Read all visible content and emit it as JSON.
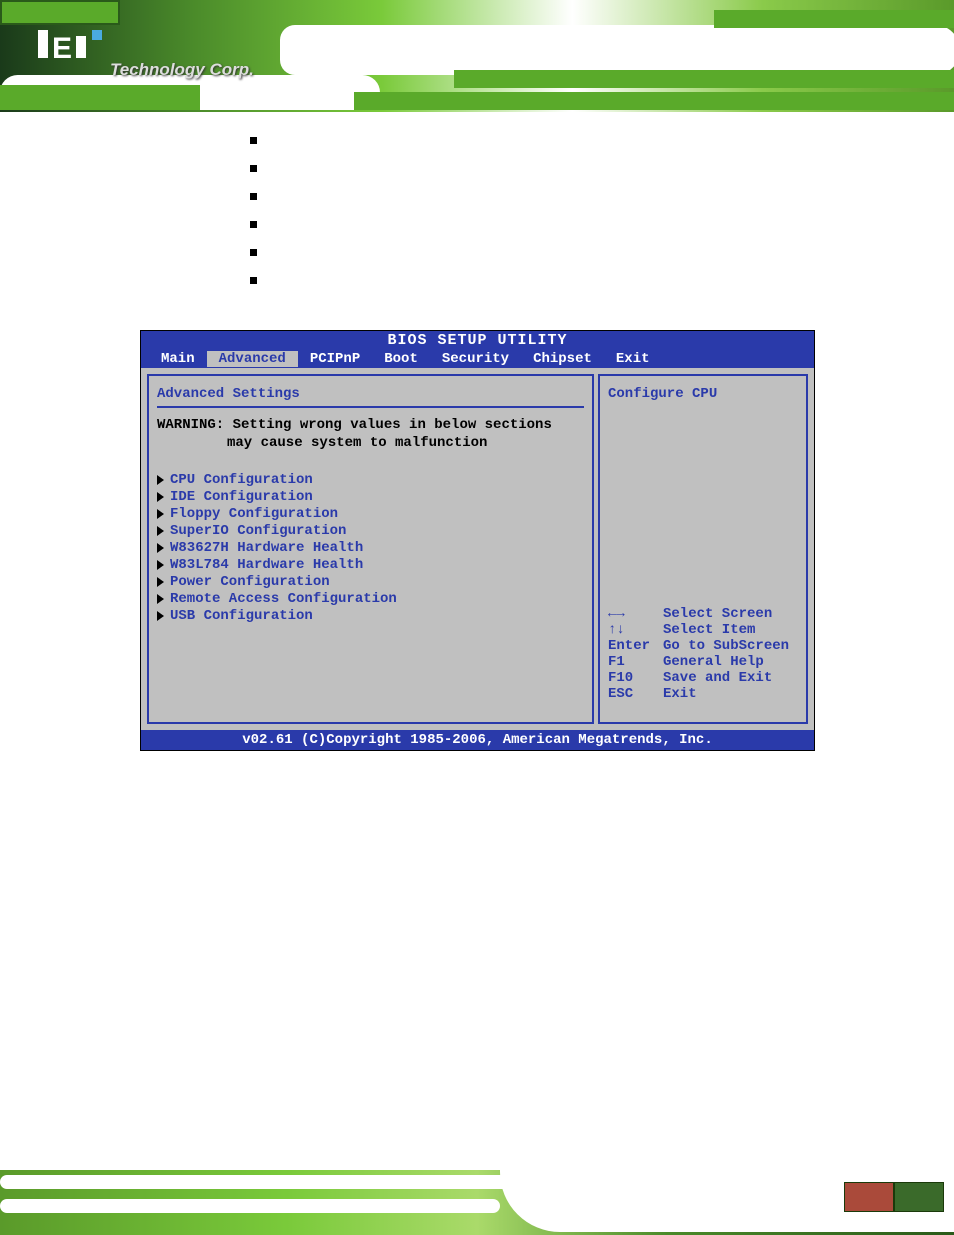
{
  "logo_text": "Technology Corp.",
  "bullets": [
    "",
    "",
    "",
    "",
    "",
    ""
  ],
  "bios": {
    "title": "BIOS SETUP UTILITY",
    "tabs": [
      "Main",
      "Advanced",
      "PCIPnP",
      "Boot",
      "Security",
      "Chipset",
      "Exit"
    ],
    "active_tab_index": 1,
    "left_panel": {
      "header": "Advanced Settings",
      "warning_line1": "WARNING: Setting wrong values in below sections",
      "warning_line2": "may cause system to malfunction",
      "items": [
        "CPU Configuration",
        "IDE Configuration",
        "Floppy Configuration",
        "SuperIO Configuration",
        "W83627H Hardware Health",
        "W83L784 Hardware Health",
        "Power Configuration",
        "Remote Access Configuration",
        "USB Configuration"
      ]
    },
    "right_panel": {
      "help_title": "Configure CPU",
      "keys": [
        {
          "k": "←→",
          "d": "Select Screen"
        },
        {
          "k": "↑↓",
          "d": "Select Item"
        },
        {
          "k": "Enter",
          "d": "Go to SubScreen"
        },
        {
          "k": "F1",
          "d": "General Help"
        },
        {
          "k": "F10",
          "d": "Save and Exit"
        },
        {
          "k": "ESC",
          "d": "Exit"
        }
      ]
    },
    "footer": "v02.61 (C)Copyright 1985-2006, American Megatrends, Inc.",
    "colors": {
      "tab_bg": "#2a3aaa",
      "tab_fg": "#ffffff",
      "panel_bg": "#c0c0c0",
      "accent": "#2a3aaa"
    }
  }
}
